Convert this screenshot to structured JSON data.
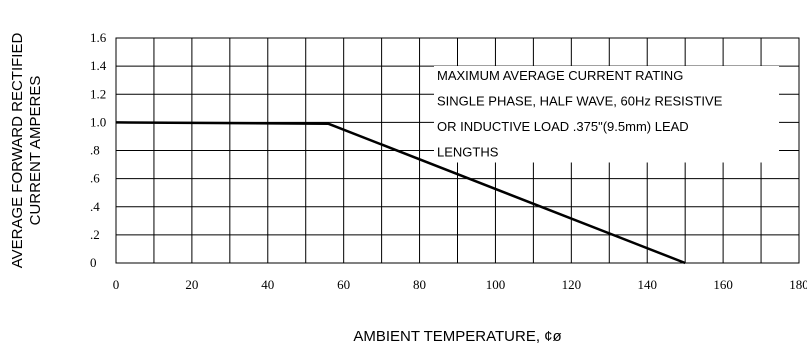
{
  "chart_data": {
    "type": "line",
    "title": "",
    "xlabel": "AMBIENT TEMPERATURE, ¢ø",
    "ylabel_lines": [
      "AVERAGE FORWARD RECTIFIED",
      "CURRENT AMPERES"
    ],
    "xlim": [
      0,
      180
    ],
    "ylim": [
      0,
      1.6
    ],
    "x_ticks": [
      0,
      20,
      40,
      60,
      80,
      100,
      120,
      140,
      160,
      180
    ],
    "x_tick_labels": [
      "0",
      "20",
      "40",
      "60",
      "80",
      "100",
      "120",
      "140",
      "160",
      "180"
    ],
    "y_ticks": [
      0,
      0.2,
      0.4,
      0.6,
      0.8,
      1.0,
      1.2,
      1.4,
      1.6
    ],
    "y_tick_labels": [
      "0",
      ".2",
      ".4",
      ".6",
      ".8",
      "1.0",
      "1.2",
      "1.4",
      "1.6"
    ],
    "grid": true,
    "grid_x_step": 10,
    "grid_y_step": 0.2,
    "annotation_lines": [
      "MAXIMUM AVERAGE CURRENT RATING",
      "SINGLE PHASE, HALF WAVE, 60Hz RESISTIVE",
      "OR INDUCTIVE LOAD .375\"(9.5mm) LEAD",
      "LENGTHS"
    ],
    "series": [
      {
        "x": [
          0,
          56,
          150
        ],
        "y": [
          1.0,
          0.99,
          0.0
        ]
      }
    ]
  }
}
